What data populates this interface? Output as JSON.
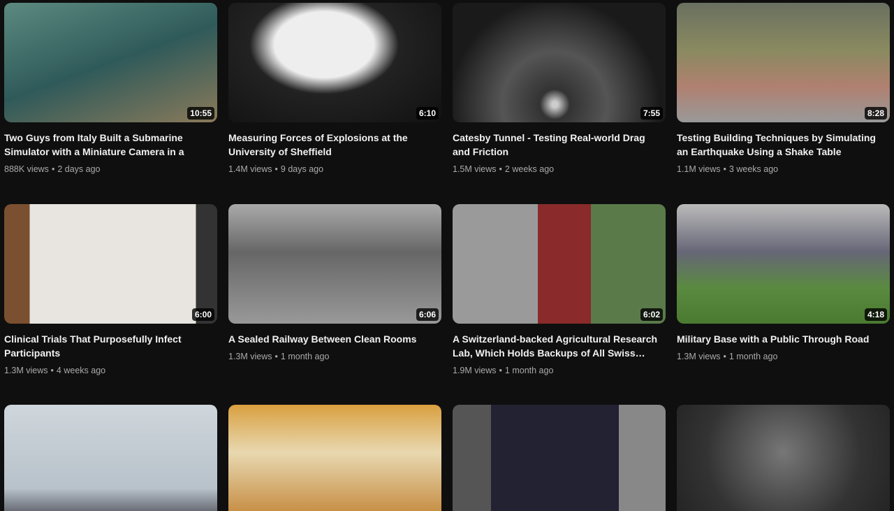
{
  "separator": "•",
  "videos": [
    {
      "title": "Two Guys from Italy Built a Submarine Simulator with a Miniature Camera in a Pon…",
      "views": "888K views",
      "age": "2 days ago",
      "duration": "10:55"
    },
    {
      "title": "Measuring Forces of Explosions at the University of Sheffield",
      "views": "1.4M views",
      "age": "9 days ago",
      "duration": "6:10"
    },
    {
      "title": "Catesby Tunnel - Testing Real-world Drag and Friction",
      "views": "1.5M views",
      "age": "2 weeks ago",
      "duration": "7:55"
    },
    {
      "title": "Testing Building Techniques by Simulating an Earthquake Using a Shake Table",
      "views": "1.1M views",
      "age": "3 weeks ago",
      "duration": "8:28"
    },
    {
      "title": "Clinical Trials That Purposefully Infect Participants",
      "views": "1.3M views",
      "age": "4 weeks ago",
      "duration": "6:00"
    },
    {
      "title": "A Sealed Railway Between Clean Rooms",
      "views": "1.3M views",
      "age": "1 month ago",
      "duration": "6:06"
    },
    {
      "title": "A Switzerland-backed Agricultural Research Lab, Which Holds Backups of All Swiss…",
      "views": "1.9M views",
      "age": "1 month ago",
      "duration": "6:02"
    },
    {
      "title": "Military Base with a Public Through Road",
      "views": "1.3M views",
      "age": "1 month ago",
      "duration": "4:18"
    }
  ]
}
